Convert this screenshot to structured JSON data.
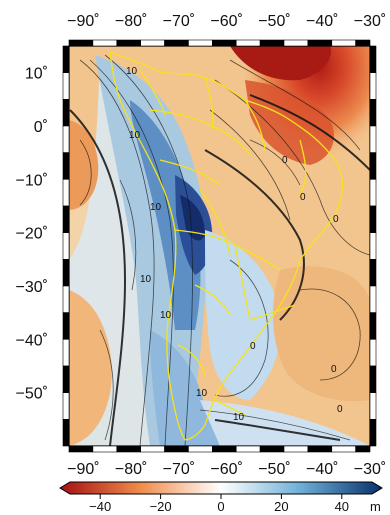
{
  "map": {
    "lon_ticks": [
      "−90˚",
      "−80˚",
      "−70˚",
      "−60˚",
      "−50˚",
      "−40˚",
      "−30˚"
    ],
    "lat_ticks": [
      "10˚",
      "0˚",
      "−10˚",
      "−20˚",
      "−30˚",
      "−40˚",
      "−50˚"
    ],
    "lon_range": [
      -93,
      -30
    ],
    "lat_range": [
      -60,
      15
    ],
    "contour_labels": [
      "10",
      "10",
      "10",
      "10",
      "10",
      "10",
      "10",
      "0",
      "0",
      "0",
      "0",
      "0",
      "0"
    ],
    "boundary_color": "#f5e31a",
    "contour_color": "#111111"
  },
  "colorbar": {
    "tick_labels": [
      "−40",
      "−20",
      "0",
      "20",
      "40"
    ],
    "unit": "m",
    "range": [
      -50,
      50
    ],
    "colors": {
      "low": "#a50f15",
      "mid_low": "#f08c4a",
      "zero": "#ffffff",
      "mid_high": "#6baed6",
      "high": "#08306b"
    }
  }
}
